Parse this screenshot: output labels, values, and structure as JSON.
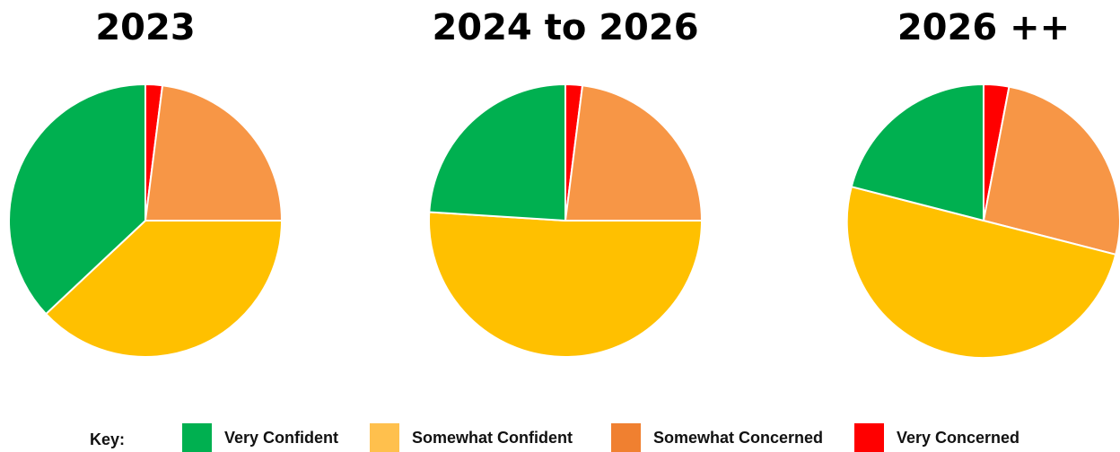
{
  "chart_data": [
    {
      "type": "pie",
      "title": "2023",
      "labels": [
        "Very Concerned",
        "Somewhat Concerned",
        "Somewhat Confident",
        "Very Confident"
      ],
      "values": [
        2,
        23,
        38,
        37
      ]
    },
    {
      "type": "pie",
      "title": "2024 to 2026",
      "labels": [
        "Very Concerned",
        "Somewhat Concerned",
        "Somewhat Confident",
        "Very Confident"
      ],
      "values": [
        2,
        23,
        51,
        24
      ]
    },
    {
      "type": "pie",
      "title": "2026 ++",
      "labels": [
        "Very Concerned",
        "Somewhat Concerned",
        "Somewhat Confident",
        "Very Confident"
      ],
      "values": [
        3,
        26,
        50,
        21
      ]
    }
  ],
  "legend": {
    "key_label": "Key:",
    "placement": "bottom",
    "items": [
      {
        "label": "Very Confident",
        "color": "#00b050"
      },
      {
        "label": "Somewhat Confident",
        "color": "#ffc04d"
      },
      {
        "label": "Somewhat Concerned",
        "color": "#f08030"
      },
      {
        "label": "Very Concerned",
        "color": "#ff0000"
      }
    ]
  },
  "slice_colors": {
    "Very Confident": "#00b050",
    "Somewhat Confident": "#ffc000",
    "Somewhat Concerned": "#f79646",
    "Very Concerned": "#ff0000"
  }
}
